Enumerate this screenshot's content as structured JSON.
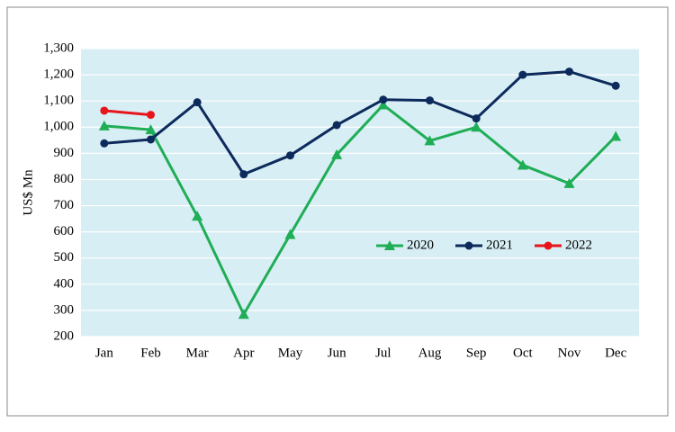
{
  "chart_data": {
    "type": "line",
    "ylabel": "US$ Mn",
    "categories": [
      "Jan",
      "Feb",
      "Mar",
      "Apr",
      "May",
      "Jun",
      "Jul",
      "Aug",
      "Sep",
      "Oct",
      "Nov",
      "Dec"
    ],
    "series": [
      {
        "name": "2020",
        "color": "#1fad56",
        "marker": "triangle",
        "values": [
          1005,
          990,
          660,
          285,
          590,
          895,
          1085,
          948,
          1000,
          855,
          785,
          965
        ]
      },
      {
        "name": "2021",
        "color": "#0d2a5c",
        "marker": "circle",
        "values": [
          938,
          953,
          1095,
          820,
          892,
          1008,
          1105,
          1102,
          1033,
          1200,
          1212,
          1158
        ]
      },
      {
        "name": "2022",
        "color": "#e8141b",
        "marker": "circle",
        "values": [
          1063,
          1047,
          null,
          null,
          null,
          null,
          null,
          null,
          null,
          null,
          null,
          null
        ]
      }
    ],
    "ylim": [
      200,
      1300
    ],
    "yticks": [
      200,
      300,
      400,
      500,
      600,
      700,
      800,
      900,
      {
        "value": 1000,
        "label": "1,000"
      },
      {
        "value": 1100,
        "label": "1,100"
      },
      {
        "value": 1200,
        "label": "1,200"
      },
      {
        "value": 1300,
        "label": "1,300"
      }
    ],
    "grid": true,
    "legend": "right"
  }
}
